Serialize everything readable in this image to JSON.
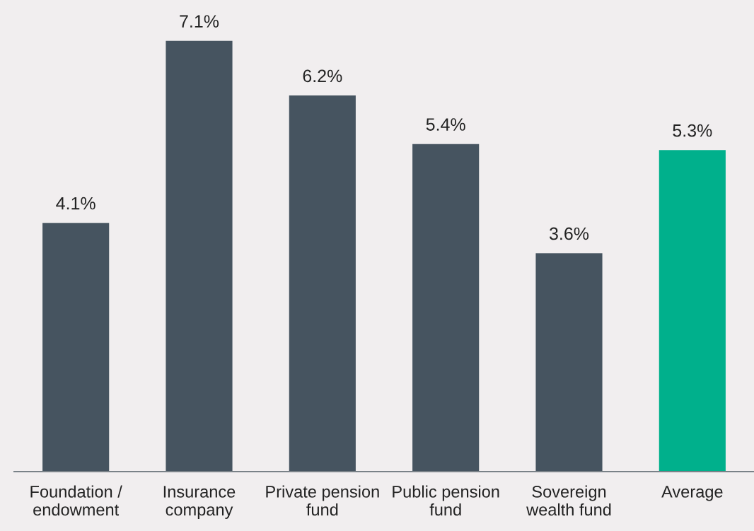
{
  "chart_data": {
    "type": "bar",
    "categories": [
      "Foundation /\nendowment",
      "Insurance\ncompany",
      "Private pension\nfund",
      "Public pension\nfund",
      "Sovereign\nwealth fund",
      "Average"
    ],
    "values": [
      4.1,
      7.1,
      6.2,
      5.4,
      3.6,
      5.3
    ],
    "value_labels": [
      "4.1%",
      "7.1%",
      "6.2%",
      "5.4%",
      "3.6%",
      "5.3%"
    ],
    "colors": [
      "#465460",
      "#465460",
      "#465460",
      "#465460",
      "#465460",
      "#00b08c"
    ],
    "grid": false
  }
}
